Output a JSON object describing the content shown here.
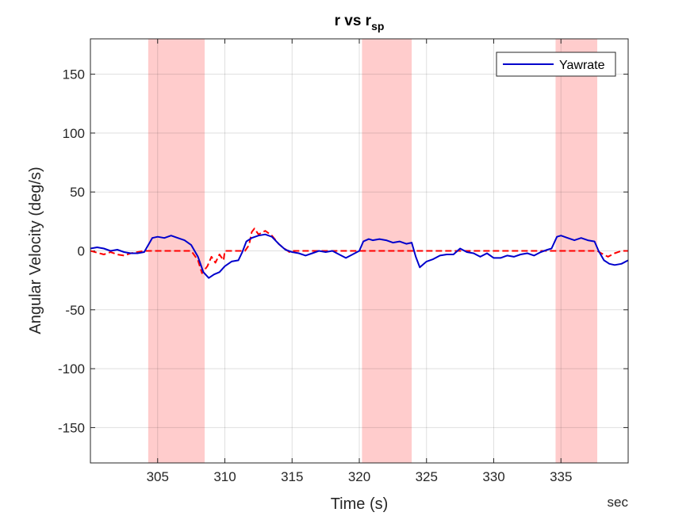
{
  "chart_data": {
    "type": "line",
    "title": "r vs r",
    "title_subscript": "sp",
    "xlabel": "Time (s)",
    "ylabel": "Angular Velocity (deg/s)",
    "x_unit_label": "sec",
    "xlim": [
      300,
      340
    ],
    "ylim": [
      -180,
      180
    ],
    "xticks": [
      305,
      310,
      315,
      320,
      325,
      330,
      335
    ],
    "yticks": [
      150,
      100,
      50,
      0,
      -50,
      -100,
      -150
    ],
    "grid": true,
    "legend_position": "top-right",
    "shaded_regions": [
      {
        "x0": 304.3,
        "x1": 308.5,
        "color": "#ffcccc"
      },
      {
        "x0": 320.2,
        "x1": 323.9,
        "color": "#ffcccc"
      },
      {
        "x0": 334.6,
        "x1": 337.7,
        "color": "#ffcccc"
      }
    ],
    "series": [
      {
        "name": "Yawrate",
        "color": "#0000cc",
        "style": "solid",
        "in_legend": true,
        "x": [
          300,
          300.5,
          301,
          301.5,
          302,
          302.5,
          303,
          303.5,
          304,
          304.3,
          304.6,
          305,
          305.5,
          306,
          306.5,
          307,
          307.5,
          308,
          308.4,
          308.8,
          309.2,
          309.6,
          310,
          310.5,
          311,
          311.3,
          311.6,
          312,
          312.5,
          313,
          313.5,
          314,
          314.5,
          315,
          315.5,
          316,
          316.5,
          317,
          317.5,
          318,
          318.5,
          319,
          319.5,
          320,
          320.3,
          320.7,
          321,
          321.5,
          322,
          322.5,
          323,
          323.5,
          323.9,
          324.2,
          324.5,
          325,
          325.5,
          326,
          326.5,
          327,
          327.5,
          328,
          328.5,
          329,
          329.5,
          330,
          330.5,
          331,
          331.5,
          332,
          332.5,
          333,
          333.5,
          334,
          334.3,
          334.7,
          335,
          335.5,
          336,
          336.5,
          337,
          337.5,
          337.8,
          338.2,
          338.6,
          339,
          339.5,
          340
        ],
        "y": [
          2,
          3,
          2,
          0,
          1,
          -1,
          -2,
          -2,
          -1,
          5,
          11,
          12,
          11,
          13,
          11,
          9,
          5,
          -5,
          -18,
          -23,
          -20,
          -18,
          -13,
          -9,
          -8,
          -1,
          8,
          11,
          13,
          14,
          12,
          6,
          1,
          -1,
          -2,
          -4,
          -2,
          0,
          -1,
          0,
          -3,
          -6,
          -3,
          0,
          8,
          10,
          9,
          10,
          9,
          7,
          8,
          6,
          7,
          -5,
          -14,
          -9,
          -7,
          -4,
          -3,
          -3,
          2,
          -1,
          -2,
          -5,
          -2,
          -6,
          -6,
          -4,
          -5,
          -3,
          -2,
          -4,
          -1,
          1,
          2,
          12,
          13,
          11,
          9,
          11,
          9,
          8,
          0,
          -8,
          -11,
          -12,
          -11,
          -8
        ]
      },
      {
        "name": "",
        "color": "#ff0000",
        "style": "dashed",
        "in_legend": false,
        "x": [
          300,
          301,
          301.5,
          302,
          302.5,
          303,
          303.5,
          304,
          304.3,
          305,
          306,
          307,
          307.5,
          308,
          308.3,
          308.7,
          309,
          309.3,
          309.6,
          309.9,
          310,
          311,
          311.5,
          311.8,
          312,
          312.2,
          312.5,
          313,
          313.5,
          314,
          314.3,
          314.8,
          315,
          320,
          325,
          330,
          335,
          336,
          337,
          337.7,
          338,
          338.5,
          339,
          339.5,
          340
        ],
        "y": [
          0,
          -3,
          -1,
          -3,
          -4,
          -2,
          -1,
          0,
          0,
          0,
          0,
          0,
          0,
          -8,
          -19,
          -13,
          -5,
          -10,
          -3,
          -8,
          0,
          0,
          0,
          5,
          16,
          19,
          14,
          17,
          13,
          6,
          3,
          -1,
          0,
          0,
          0,
          0,
          0,
          0,
          0,
          0,
          -2,
          -5,
          -2,
          0,
          0
        ]
      }
    ]
  }
}
